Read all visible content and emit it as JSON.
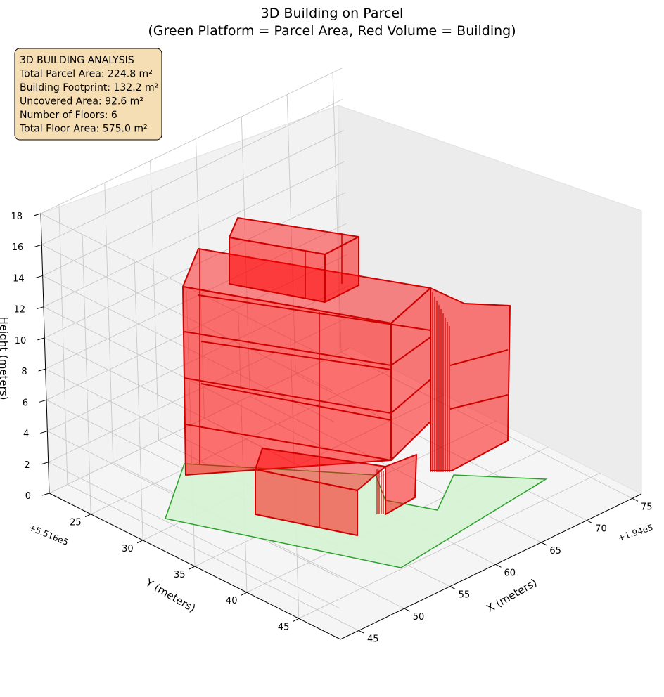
{
  "chart_data": {
    "type": "3d-polygon",
    "title": "3D Building on Parcel",
    "subtitle": "(Green Platform = Parcel Area, Red Volume = Building)",
    "xlabel": "X (meters)",
    "ylabel": "Y (meters)",
    "zlabel": "Height (meters)",
    "x_offset": "+1.94e5",
    "y_offset": "+5.516e5",
    "x_ticks": [
      "45",
      "50",
      "55",
      "60",
      "65",
      "70",
      "75"
    ],
    "y_ticks": [
      "25",
      "30",
      "35",
      "40",
      "45"
    ],
    "z_ticks": [
      "0",
      "2",
      "4",
      "6",
      "8",
      "10",
      "12",
      "14",
      "16",
      "18"
    ],
    "xlim": [
      43,
      76
    ],
    "ylim": [
      21,
      49
    ],
    "zlim": [
      0,
      18
    ],
    "grid": true,
    "colors": {
      "parcel_fill": "#d6f2d3",
      "parcel_edge": "#2ca02c",
      "building_fill": "#ff0000",
      "building_edge": "#d00000",
      "info_box_fill": "#f5deb3"
    },
    "parcel": {
      "name": "Parcel Area",
      "area_m2": 224.8
    },
    "building": {
      "name": "Building",
      "footprint_m2": 132.2,
      "floors": 6,
      "total_floor_area_m2": 575.0
    },
    "info_box": {
      "lines": [
        "3D BUILDING ANALYSIS",
        "Total Parcel Area: 224.8 m²",
        "Building Footprint: 132.2 m²",
        "Uncovered Area: 92.6 m²",
        "Number of Floors: 6",
        "Total Floor Area: 575.0 m²"
      ],
      "position": "top-left"
    }
  }
}
